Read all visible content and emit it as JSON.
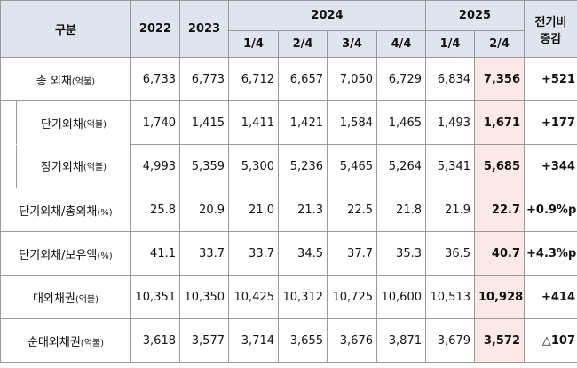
{
  "header": {
    "label": "구분",
    "years": [
      "2022",
      "2023",
      "2024",
      "2025"
    ],
    "quarters": [
      "1/4",
      "2/4",
      "3/4",
      "4/4",
      "1/4",
      "2/4"
    ],
    "change": [
      "전기비",
      "증감"
    ]
  },
  "rows": [
    {
      "label": "총 외채",
      "unit": "(억불)",
      "sub": false,
      "values": [
        "6,733",
        "6,773",
        "6,712",
        "6,657",
        "7,050",
        "6,729",
        "6,834",
        "7,356"
      ],
      "change": "+521"
    },
    {
      "label": "단기외채",
      "unit": "(억불)",
      "sub": true,
      "values": [
        "1,740",
        "1,415",
        "1,411",
        "1,421",
        "1,584",
        "1,465",
        "1,493",
        "1,671"
      ],
      "change": "+177"
    },
    {
      "label": "장기외채",
      "unit": "(억불)",
      "sub": true,
      "values": [
        "4,993",
        "5,359",
        "5,300",
        "5,236",
        "5,465",
        "5,264",
        "5,341",
        "5,685"
      ],
      "change": "+344"
    },
    {
      "label": "단기외채/총외채",
      "unit": "(%)",
      "sub": false,
      "values": [
        "25.8",
        "20.9",
        "21.0",
        "21.3",
        "22.5",
        "21.8",
        "21.9",
        "22.7"
      ],
      "change": "+0.9%p"
    },
    {
      "label": "단기외채/보유액",
      "unit": "(%)",
      "sub": false,
      "values": [
        "41.1",
        "33.7",
        "33.7",
        "34.5",
        "37.7",
        "35.3",
        "36.5",
        "40.7"
      ],
      "change": "+4.3%p"
    },
    {
      "label": "대외채권",
      "unit": "(억불)",
      "sub": false,
      "values": [
        "10,351",
        "10,350",
        "10,425",
        "10,312",
        "10,725",
        "10,600",
        "10,513",
        "10,928"
      ],
      "change": "+414"
    },
    {
      "label": "순대외채권",
      "unit": "(억불)",
      "sub": false,
      "values": [
        "3,618",
        "3,577",
        "3,714",
        "3,655",
        "3,676",
        "3,871",
        "3,679",
        "3,572"
      ],
      "change": "△107"
    }
  ]
}
